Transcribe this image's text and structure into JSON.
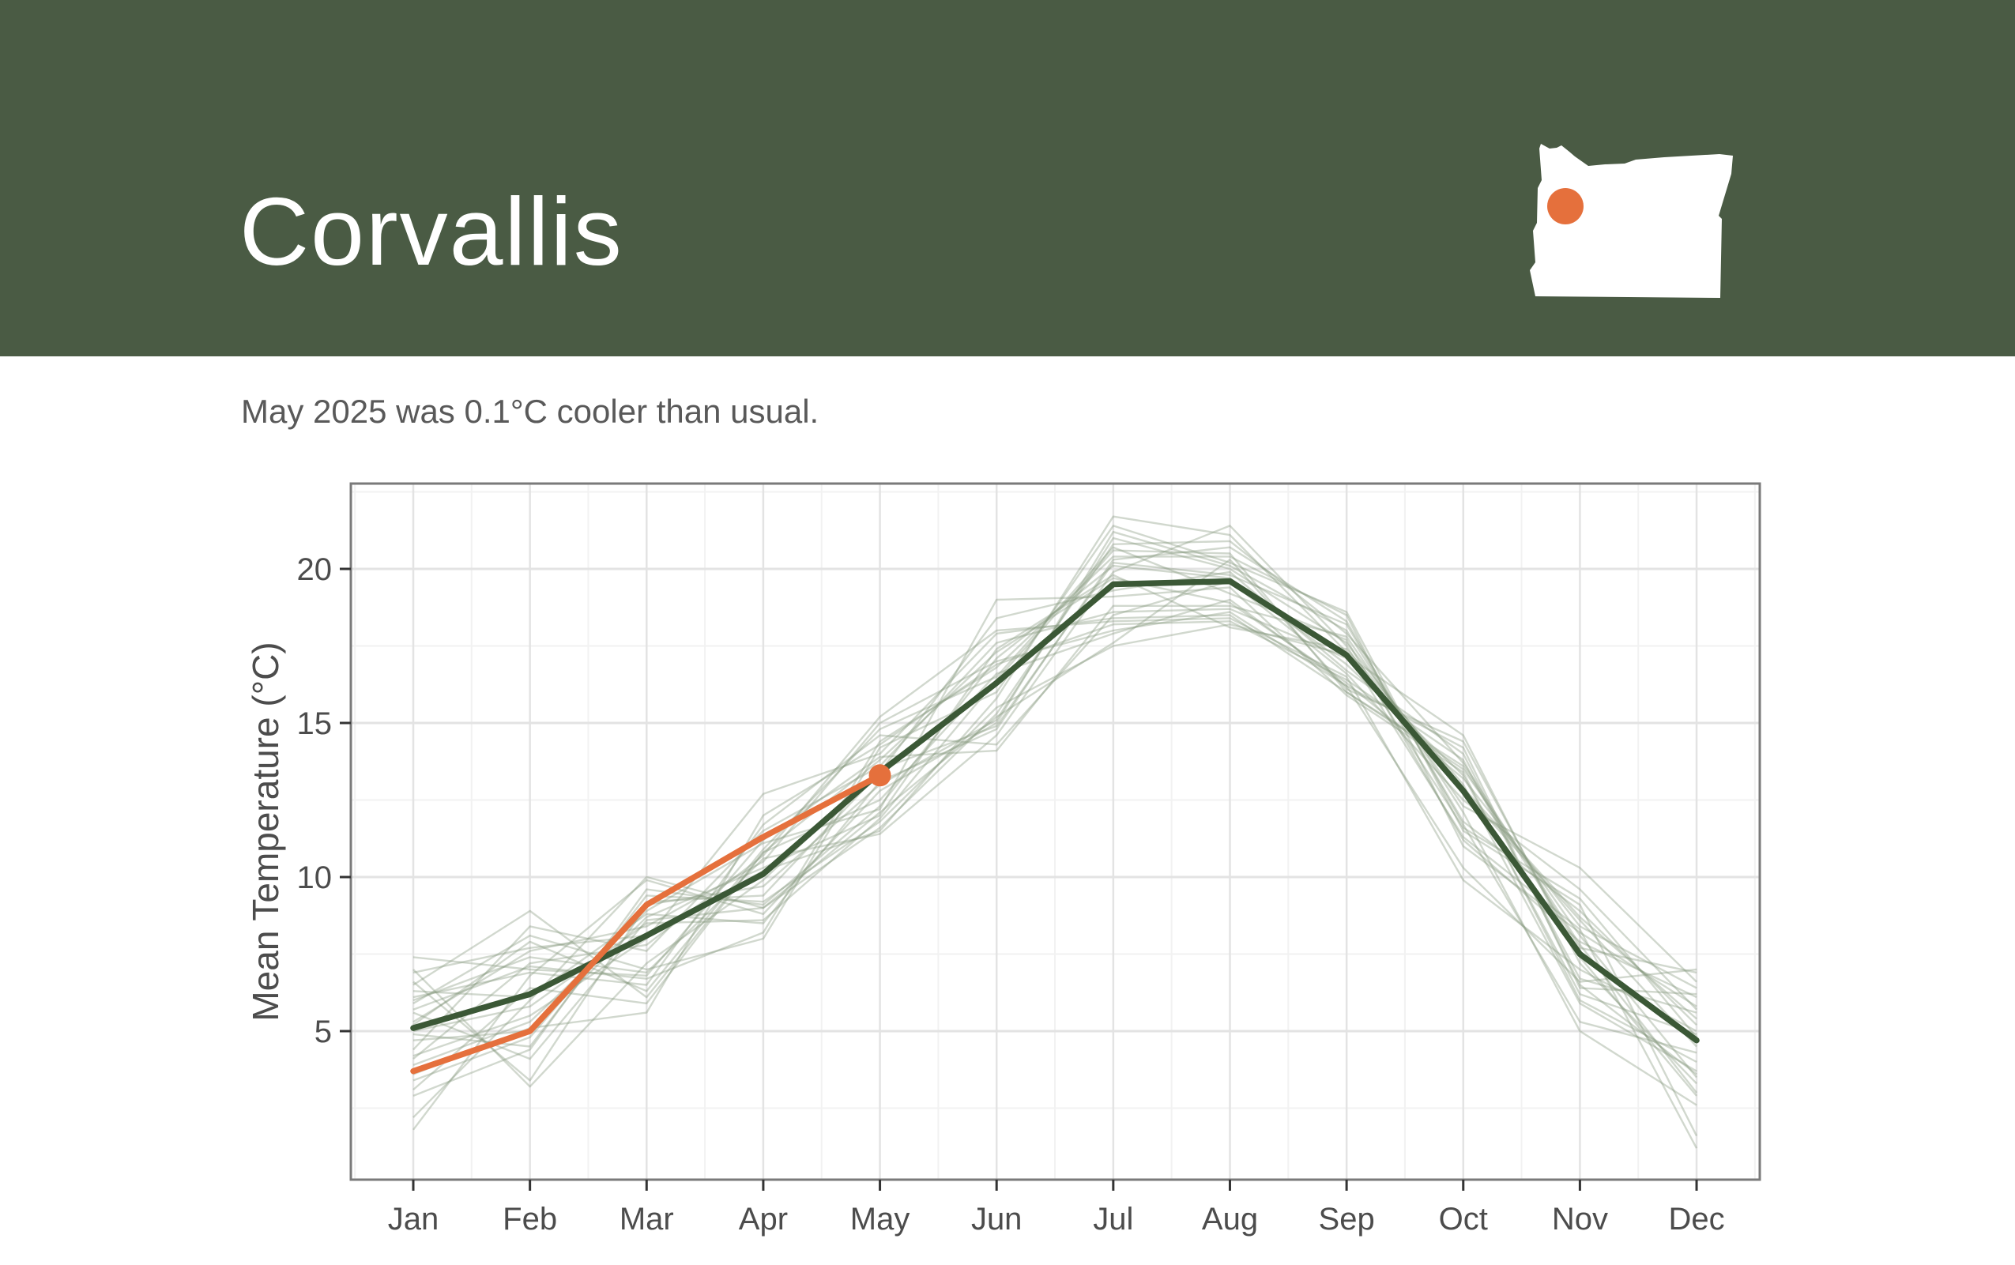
{
  "header": {
    "title": "Corvallis",
    "background_color": "#4A5B44",
    "map": {
      "name": "oregon-state-silhouette",
      "fill": "#FFFFFF",
      "marker_color": "#E5703C"
    }
  },
  "subtitle": "May 2025 was 0.1°C cooler than usual.",
  "chart_data": {
    "type": "line",
    "title": "",
    "xlabel": "",
    "ylabel": "Mean Temperature (°C)",
    "categories": [
      "Jan",
      "Feb",
      "Mar",
      "Apr",
      "May",
      "Jun",
      "Jul",
      "Aug",
      "Sep",
      "Oct",
      "Nov",
      "Dec"
    ],
    "yticks": [
      5,
      10,
      15,
      20
    ],
    "yticks_minor": [
      2.5,
      7.5,
      12.5,
      17.5,
      22.5
    ],
    "ylim": [
      0.2,
      22.8
    ],
    "grid": "major-and-minor",
    "legend_position": "none",
    "colors": {
      "mean_line": "#3B5836",
      "current_line": "#E5703C",
      "historical_line": "#87987F",
      "grid_major": "#E3E3E3",
      "grid_minor": "#F2F2F2",
      "panel_border": "#7A7A7A",
      "tick": "#333333",
      "tick_text": "#4C4C4C"
    },
    "historical_opacity": 0.38,
    "series": [
      {
        "name": "historical-mean",
        "role": "mean",
        "values": [
          5.1,
          6.2,
          8.1,
          10.1,
          13.4,
          16.3,
          19.5,
          19.6,
          17.2,
          12.8,
          7.5,
          4.7
        ]
      },
      {
        "name": "year-2025",
        "role": "current",
        "values": [
          3.7,
          5.0,
          9.1,
          11.3,
          13.3
        ],
        "endpoint_marker": true
      }
    ],
    "historical_series": [
      [
        5.6,
        4.1,
        8.6,
        9.0,
        12.1,
        15.2,
        17.6,
        20.3,
        16.1,
        14.4,
        7.4,
        2.9
      ],
      [
        4.4,
        8.4,
        7.6,
        11.5,
        13.6,
        17.6,
        18.6,
        18.7,
        17.1,
        12.9,
        8.7,
        5.4
      ],
      [
        6.3,
        6.1,
        8.8,
        8.5,
        13.1,
        14.8,
        20.3,
        20.7,
        18.3,
        11.7,
        5.3,
        4.3
      ],
      [
        3.6,
        5.1,
        5.6,
        12.0,
        14.3,
        16.9,
        18.2,
        18.3,
        16.4,
        13.8,
        6.7,
        5.6
      ],
      [
        6.9,
        7.7,
        8.1,
        10.2,
        11.5,
        15.8,
        21.7,
        21.1,
        17.3,
        11.3,
        8.3,
        1.2
      ],
      [
        2.9,
        4.4,
        9.6,
        9.1,
        12.3,
        17.1,
        20.1,
        19.7,
        16.9,
        13.3,
        6.2,
        4.9
      ],
      [
        7.4,
        7.0,
        6.8,
        11.2,
        13.9,
        14.1,
        18.8,
        18.8,
        17.8,
        12.3,
        10.3,
        6.6
      ],
      [
        5.0,
        5.8,
        8.5,
        8.6,
        11.9,
        16.4,
        20.6,
        20.5,
        16.0,
        13.5,
        8.1,
        3.5
      ],
      [
        4.1,
        7.2,
        7.8,
        10.7,
        15.2,
        18.0,
        18.3,
        18.4,
        16.5,
        9.9,
        7.0,
        5.0
      ],
      [
        6.6,
        3.4,
        9.1,
        9.7,
        13.0,
        15.1,
        21.0,
        20.0,
        17.6,
        12.8,
        8.6,
        4.5
      ],
      [
        3.1,
        6.4,
        5.9,
        10.8,
        12.5,
        16.6,
        17.9,
        19.0,
        16.2,
        14.2,
        6.4,
        6.2
      ],
      [
        5.9,
        8.1,
        7.0,
        8.0,
        14.2,
        16.0,
        21.4,
        20.2,
        18.6,
        11.5,
        9.1,
        1.6
      ],
      [
        4.7,
        5.0,
        8.7,
        10.3,
        12.0,
        17.4,
        19.8,
        18.1,
        17.4,
        13.0,
        5.9,
        3.7
      ],
      [
        6.1,
        6.9,
        6.5,
        11.7,
        14.6,
        14.3,
        18.5,
        19.6,
        16.6,
        12.5,
        9.6,
        5.7
      ],
      [
        2.2,
        6.0,
        10.0,
        9.0,
        11.6,
        15.3,
        20.8,
        20.9,
        17.9,
        13.7,
        7.8,
        3.0
      ],
      [
        5.3,
        7.6,
        8.4,
        10.5,
        15.0,
        17.0,
        18.0,
        18.6,
        16.2,
        10.3,
        6.6,
        7.0
      ],
      [
        7.0,
        3.2,
        7.2,
        9.9,
        13.5,
        14.9,
        20.2,
        19.8,
        18.2,
        11.8,
        8.9,
        5.2
      ],
      [
        3.9,
        5.3,
        8.9,
        11.1,
        12.2,
        19.0,
        19.1,
        19.4,
        15.9,
        13.4,
        6.0,
        4.0
      ],
      [
        5.7,
        7.1,
        6.7,
        8.2,
        14.4,
        16.8,
        20.4,
        20.4,
        18.5,
        11.0,
        8.2,
        5.8
      ],
      [
        4.9,
        4.5,
        9.4,
        9.2,
        11.8,
        15.5,
        17.5,
        18.2,
        17.2,
        14.6,
        7.2,
        3.3
      ],
      [
        6.5,
        8.9,
        6.1,
        10.8,
        13.8,
        17.3,
        19.7,
        18.9,
        16.3,
        13.2,
        8.4,
        6.4
      ],
      [
        1.8,
        6.8,
        9.9,
        8.8,
        12.8,
        15.0,
        21.2,
        20.1,
        18.0,
        12.1,
        5.0,
        2.6
      ],
      [
        4.2,
        5.5,
        8.0,
        12.7,
        14.0,
        17.9,
        18.4,
        18.5,
        16.0,
        13.6,
        7.7,
        6.9
      ],
      [
        6.0,
        7.4,
        6.9,
        10.6,
        11.4,
        14.6,
        19.9,
        21.4,
        17.5,
        11.6,
        9.3,
        4.8
      ],
      [
        3.4,
        4.8,
        9.2,
        9.4,
        13.4,
        18.4,
        19.3,
        19.9,
        16.7,
        14.0,
        6.5,
        3.6
      ],
      [
        5.2,
        7.9,
        6.3,
        10.9,
        14.8,
        16.5,
        20.7,
        19.2,
        17.7,
        11.2,
        7.9,
        6.1
      ]
    ]
  }
}
